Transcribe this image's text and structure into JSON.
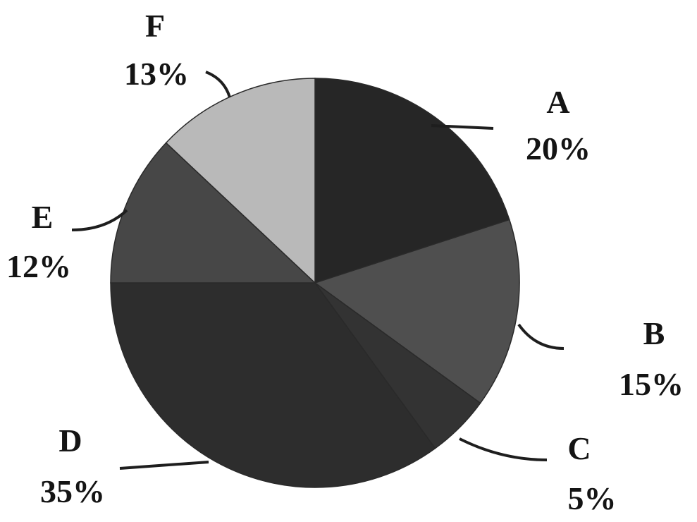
{
  "chart_data": {
    "type": "pie",
    "title": "",
    "start_angle_deg": 0,
    "direction": "clockwise",
    "legend": "none",
    "slices": [
      {
        "label": "A",
        "value": 20,
        "value_label": "20%",
        "color": "#262626"
      },
      {
        "label": "B",
        "value": 15,
        "value_label": "15%",
        "color": "#4f4f4f"
      },
      {
        "label": "C",
        "value": 5,
        "value_label": "5%",
        "color": "#333333"
      },
      {
        "label": "D",
        "value": 35,
        "value_label": "35%",
        "color": "#2d2d2d"
      },
      {
        "label": "E",
        "value": 12,
        "value_label": "12%",
        "color": "#474747"
      },
      {
        "label": "F",
        "value": 13,
        "value_label": "13%",
        "color": "#b9b9b9"
      }
    ]
  }
}
